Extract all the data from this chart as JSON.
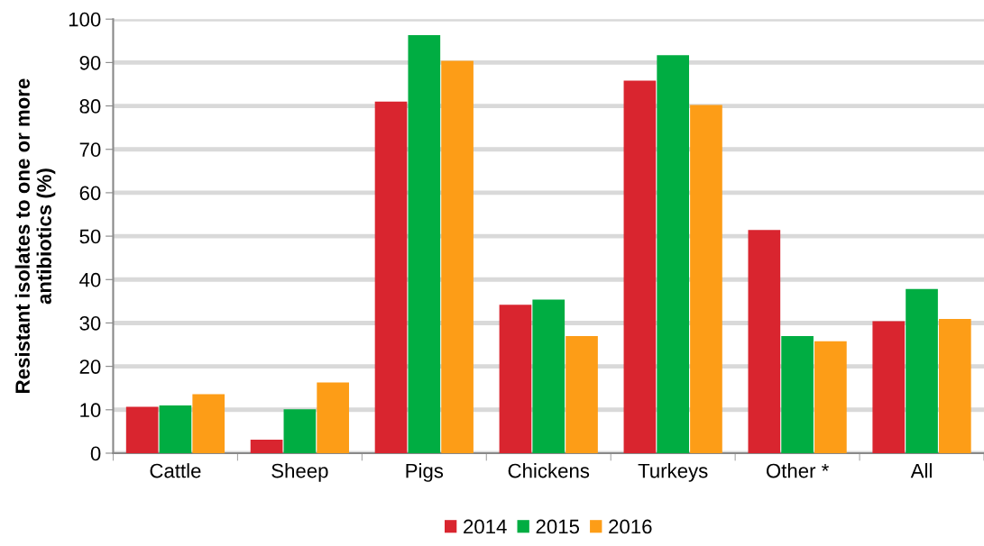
{
  "chart_data": {
    "type": "bar",
    "ylabel": "Resistant isolates to one or more\nantibiotics (%)",
    "categories": [
      "Cattle",
      "Sheep",
      "Pigs",
      "Chickens",
      "Turkeys",
      "Other *",
      "All"
    ],
    "series": [
      {
        "name": "2014",
        "color": "#d9252f",
        "values": [
          10.7,
          3.1,
          81.0,
          34.2,
          85.8,
          51.4,
          30.4
        ]
      },
      {
        "name": "2015",
        "color": "#00ad42",
        "values": [
          11.0,
          10.1,
          96.3,
          35.4,
          91.7,
          27.0,
          37.8
        ]
      },
      {
        "name": "2016",
        "color": "#fd9d17",
        "values": [
          13.6,
          16.3,
          90.4,
          27.0,
          80.2,
          25.8,
          30.9
        ]
      }
    ],
    "ylim": [
      0,
      100
    ],
    "yticks": [
      0,
      10,
      20,
      30,
      40,
      50,
      60,
      70,
      80,
      90,
      100
    ],
    "grid": "y",
    "legend": "bottom"
  }
}
